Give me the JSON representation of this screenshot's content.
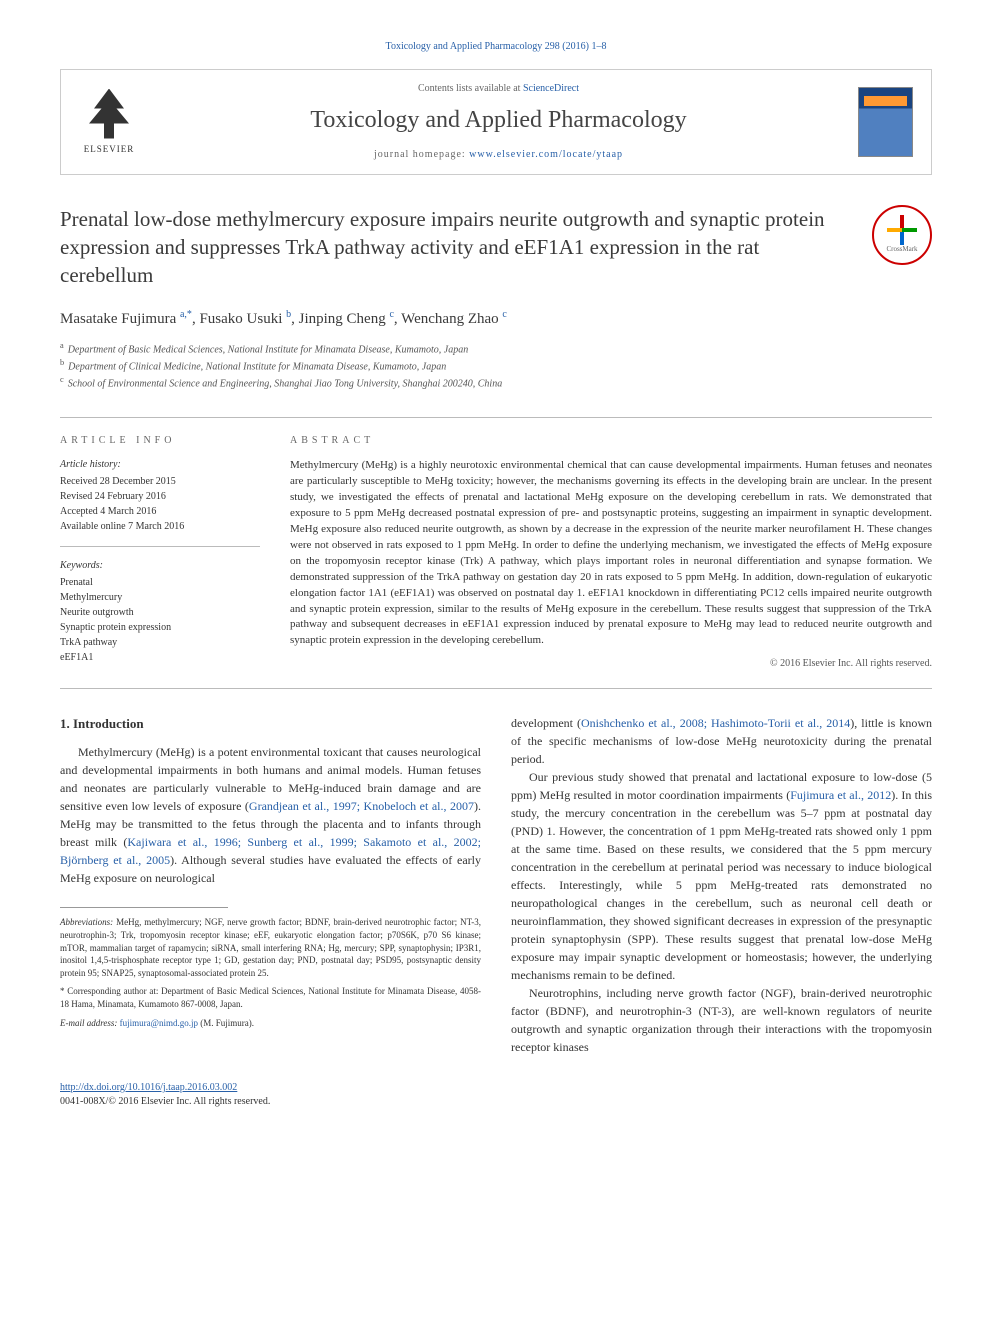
{
  "top_citation": "Toxicology and Applied Pharmacology 298 (2016) 1–8",
  "header": {
    "publisher": "ELSEVIER",
    "contents_prefix": "Contents lists available at ",
    "contents_link": "ScienceDirect",
    "journal_name": "Toxicology and Applied Pharmacology",
    "homepage_prefix": "journal homepage: ",
    "homepage_url": "www.elsevier.com/locate/ytaap"
  },
  "crossmark_label": "CrossMark",
  "title": "Prenatal low-dose methylmercury exposure impairs neurite outgrowth and synaptic protein expression and suppresses TrkA pathway activity and eEF1A1 expression in the rat cerebellum",
  "authors_html": "Masatake Fujimura <sup>a,*</sup>, Fusako Usuki <sup>b</sup>, Jinping Cheng <sup>c</sup>, Wenchang Zhao <sup>c</sup>",
  "affiliations": [
    {
      "sup": "a",
      "text": "Department of Basic Medical Sciences, National Institute for Minamata Disease, Kumamoto, Japan"
    },
    {
      "sup": "b",
      "text": "Department of Clinical Medicine, National Institute for Minamata Disease, Kumamoto, Japan"
    },
    {
      "sup": "c",
      "text": "School of Environmental Science and Engineering, Shanghai Jiao Tong University, Shanghai 200240, China"
    }
  ],
  "article_info": {
    "label": "article info",
    "history_heading": "Article history:",
    "history": [
      "Received 28 December 2015",
      "Revised 24 February 2016",
      "Accepted 4 March 2016",
      "Available online 7 March 2016"
    ],
    "keywords_heading": "Keywords:",
    "keywords": [
      "Prenatal",
      "Methylmercury",
      "Neurite outgrowth",
      "Synaptic protein expression",
      "TrkA pathway",
      "eEF1A1"
    ]
  },
  "abstract": {
    "label": "abstract",
    "text": "Methylmercury (MeHg) is a highly neurotoxic environmental chemical that can cause developmental impairments. Human fetuses and neonates are particularly susceptible to MeHg toxicity; however, the mechanisms governing its effects in the developing brain are unclear. In the present study, we investigated the effects of prenatal and lactational MeHg exposure on the developing cerebellum in rats. We demonstrated that exposure to 5 ppm MeHg decreased postnatal expression of pre- and postsynaptic proteins, suggesting an impairment in synaptic development. MeHg exposure also reduced neurite outgrowth, as shown by a decrease in the expression of the neurite marker neurofilament H. These changes were not observed in rats exposed to 1 ppm MeHg. In order to define the underlying mechanism, we investigated the effects of MeHg exposure on the tropomyosin receptor kinase (Trk) A pathway, which plays important roles in neuronal differentiation and synapse formation. We demonstrated suppression of the TrkA pathway on gestation day 20 in rats exposed to 5 ppm MeHg. In addition, down-regulation of eukaryotic elongation factor 1A1 (eEF1A1) was observed on postnatal day 1. eEF1A1 knockdown in differentiating PC12 cells impaired neurite outgrowth and synaptic protein expression, similar to the results of MeHg exposure in the cerebellum. These results suggest that suppression of the TrkA pathway and subsequent decreases in eEF1A1 expression induced by prenatal exposure to MeHg may lead to reduced neurite outgrowth and synaptic protein expression in the developing cerebellum.",
    "copyright": "© 2016 Elsevier Inc. All rights reserved."
  },
  "body": {
    "heading": "1. Introduction",
    "left_paragraphs": [
      "Methylmercury (MeHg) is a potent environmental toxicant that causes neurological and developmental impairments in both humans and animal models. Human fetuses and neonates are particularly vulnerable to MeHg-induced brain damage and are sensitive even low levels of exposure (<span class='cite'>Grandjean et al., 1997; Knobeloch et al., 2007</span>). MeHg may be transmitted to the fetus through the placenta and to infants through breast milk (<span class='cite'>Kajiwara et al., 1996; Sunberg et al., 1999; Sakamoto et al., 2002; Björnberg et al., 2005</span>). Although several studies have evaluated the effects of early MeHg exposure on neurological"
    ],
    "right_paragraphs": [
      "development (<span class='cite'>Onishchenko et al., 2008; Hashimoto-Torii et al., 2014</span>), little is known of the specific mechanisms of low-dose MeHg neurotoxicity during the prenatal period.",
      "Our previous study showed that prenatal and lactational exposure to low-dose (5 ppm) MeHg resulted in motor coordination impairments (<span class='cite'>Fujimura et al., 2012</span>). In this study, the mercury concentration in the cerebellum was 5–7 ppm at postnatal day (PND) 1. However, the concentration of 1 ppm MeHg-treated rats showed only 1 ppm at the same time. Based on these results, we considered that the 5 ppm mercury concentration in the cerebellum at perinatal period was necessary to induce biological effects. Interestingly, while 5 ppm MeHg-treated rats demonstrated no neuropathological changes in the cerebellum, such as neuronal cell death or neuroinflammation, they showed significant decreases in expression of the presynaptic protein synaptophysin (SPP). These results suggest that prenatal low-dose MeHg exposure may impair synaptic development or homeostasis; however, the underlying mechanisms remain to be defined.",
      "Neurotrophins, including nerve growth factor (NGF), brain-derived neurotrophic factor (BDNF), and neurotrophin-3 (NT-3), are well-known regulators of neurite outgrowth and synaptic organization through their interactions with the tropomyosin receptor kinases"
    ]
  },
  "footnotes": {
    "abbrev_label": "Abbreviations:",
    "abbrev_text": " MeHg, methylmercury; NGF, nerve growth factor; BDNF, brain-derived neurotrophic factor; NT-3, neurotrophin-3; Trk, tropomyosin receptor kinase; eEF, eukaryotic elongation factor; p70S6K, p70 S6 kinase; mTOR, mammalian target of rapamycin; siRNA, small interfering RNA; Hg, mercury; SPP, synaptophysin; IP3R1, inositol 1,4,5-trisphosphate receptor type 1; GD, gestation day; PND, postnatal day; PSD95, postsynaptic density protein 95; SNAP25, synaptosomal-associated protein 25.",
    "corresponding": "* Corresponding author at: Department of Basic Medical Sciences, National Institute for Minamata Disease, 4058-18 Hama, Minamata, Kumamoto 867-0008, Japan.",
    "email_label": "E-mail address: ",
    "email": "fujimura@nimd.go.jp",
    "email_suffix": " (M. Fujimura)."
  },
  "footer": {
    "doi": "http://dx.doi.org/10.1016/j.taap.2016.03.002",
    "issn_line": "0041-008X/© 2016 Elsevier Inc. All rights reserved."
  },
  "colors": {
    "link": "#2860a8",
    "text": "#333333",
    "muted": "#666666",
    "rule": "#bbbbbb"
  }
}
